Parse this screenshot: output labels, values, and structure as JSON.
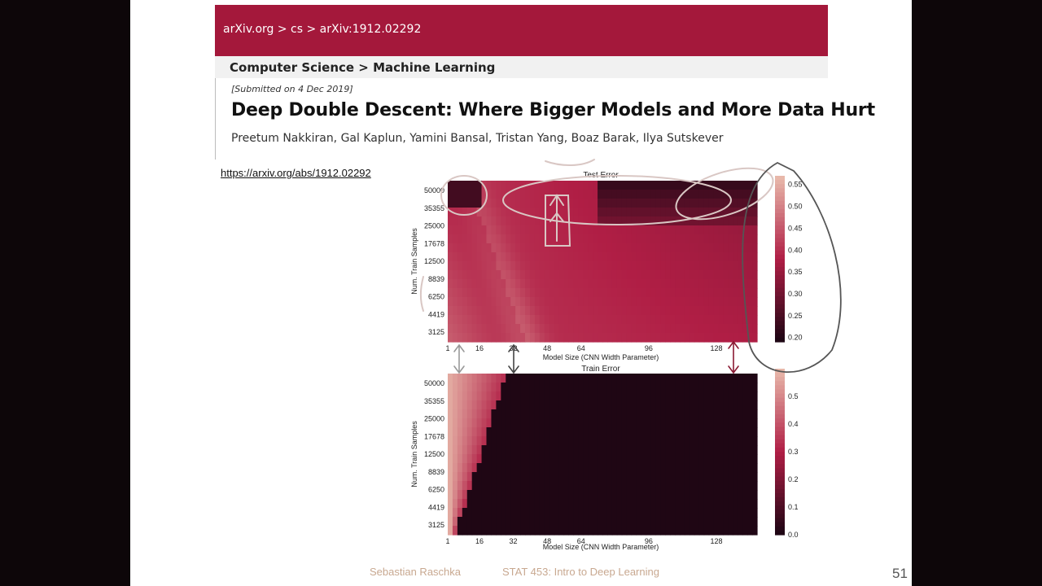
{
  "arxiv": {
    "breadcrumb": "arXiv.org > cs > arXiv:1912.02292",
    "subject": "Computer Science > Machine Learning",
    "submitted": "[Submitted on 4 Dec 2019]",
    "title": "Deep Double Descent: Where Bigger Models and More Data Hurt",
    "authors": "Preetum Nakkiran, Gal Kaplun, Yamini Bansal, Tristan Yang, Boaz Barak, Ilya Sutskever"
  },
  "link": {
    "url": "https://arxiv.org/abs/1912.02292"
  },
  "footer": {
    "author": "Sebastian Raschka",
    "course": "STAT 453: Intro to Deep Learning",
    "page": "51"
  },
  "colors": {
    "header": "#a4183b",
    "dark": "#1f0614",
    "mid": "#b01e45",
    "light": "#e8b8aa"
  },
  "chart_data": [
    {
      "type": "heatmap",
      "title": "Test Error",
      "xlabel": "Model Size (CNN Width Parameter)",
      "ylabel": "Num. Train Samples",
      "x_ticks": [
        "1",
        "16",
        "32",
        "48",
        "64",
        "96",
        "128"
      ],
      "y_ticks": [
        "50000",
        "35355",
        "25000",
        "17678",
        "12500",
        "8839",
        "6250",
        "4419",
        "3125"
      ],
      "colorbar_ticks": [
        "0.55",
        "0.50",
        "0.45",
        "0.40",
        "0.35",
        "0.30",
        "0.25",
        "0.20"
      ],
      "colorbar_range": [
        0.19,
        0.57
      ]
    },
    {
      "type": "heatmap",
      "title": "Train Error",
      "xlabel": "Model Size (CNN Width Parameter)",
      "ylabel": "Num. Train Samples",
      "x_ticks": [
        "1",
        "16",
        "32",
        "48",
        "64",
        "96",
        "128"
      ],
      "y_ticks": [
        "50000",
        "35355",
        "25000",
        "17678",
        "12500",
        "8839",
        "6250",
        "4419",
        "3125"
      ],
      "colorbar_ticks": [
        "0.5",
        "0.4",
        "0.3",
        "0.2",
        "0.1",
        "0.0"
      ],
      "colorbar_range": [
        0.0,
        0.6
      ]
    }
  ]
}
